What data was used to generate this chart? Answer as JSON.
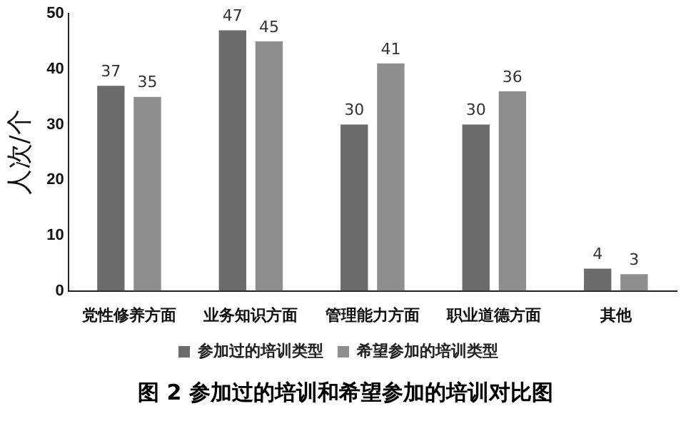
{
  "chart_data": {
    "type": "bar",
    "title": "图 2 参加过的培训和希望参加的培训对比图",
    "ylabel": "人次/个",
    "categories": [
      "党性修养方面",
      "业务知识方面",
      "管理能力方面",
      "职业道德方面",
      "其他"
    ],
    "series": [
      {
        "name": "参加过的培训类型",
        "color": "#6b6b6b",
        "values": [
          37,
          47,
          30,
          30,
          4
        ]
      },
      {
        "name": "希望参加的培训类型",
        "color": "#8e8e8e",
        "values": [
          35,
          45,
          41,
          36,
          3
        ]
      }
    ],
    "ylim": [
      0,
      50
    ],
    "yticks": [
      0,
      10,
      20,
      30,
      40,
      50
    ],
    "grid": false,
    "legend": "bottom",
    "data_labels": true
  }
}
